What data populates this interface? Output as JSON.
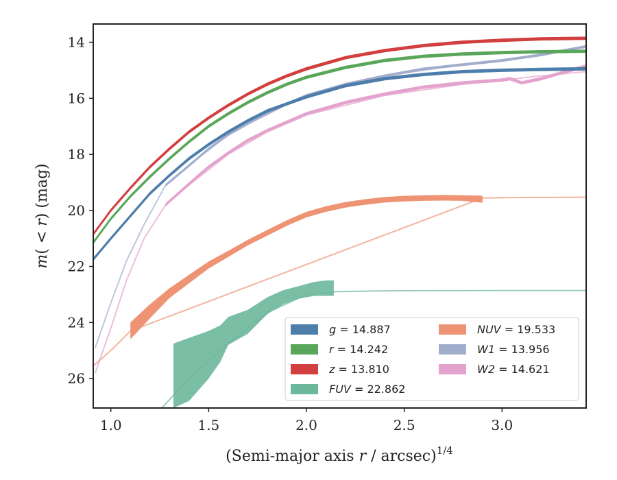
{
  "chart_data": {
    "type": "line",
    "title": "",
    "xlabel": "(Semi-major axis r / arcsec)^1/4",
    "ylabel": "m(< r) (mag)",
    "xlim": [
      0.91,
      3.43
    ],
    "ylim": [
      27.05,
      13.35
    ],
    "y_inverted": true,
    "x_ticks": [
      1.0,
      1.5,
      2.0,
      2.5,
      3.0
    ],
    "x_tick_labels": [
      "1.0",
      "1.5",
      "2.0",
      "2.5",
      "3.0"
    ],
    "y_ticks": [
      14,
      16,
      18,
      20,
      22,
      24,
      26
    ],
    "y_tick_labels": [
      "14",
      "16",
      "18",
      "20",
      "22",
      "24",
      "26"
    ],
    "grid": false,
    "legend_position": "lower-right",
    "series": [
      {
        "name": "g = 14.887",
        "color": "#4c7dab",
        "band_width": 0.12,
        "x": [
          0.91,
          1.0,
          1.1,
          1.2,
          1.3,
          1.4,
          1.5,
          1.6,
          1.7,
          1.8,
          1.9,
          2.0,
          2.2,
          2.4,
          2.6,
          2.8,
          3.0,
          3.2,
          3.43
        ],
        "y": [
          21.75,
          21.0,
          20.2,
          19.4,
          18.75,
          18.15,
          17.65,
          17.2,
          16.8,
          16.45,
          16.2,
          15.95,
          15.55,
          15.3,
          15.15,
          15.05,
          15.0,
          14.97,
          14.95
        ]
      },
      {
        "name": "r = 14.242",
        "color": "#5aa65a",
        "band_width": 0.12,
        "x": [
          0.91,
          1.0,
          1.1,
          1.2,
          1.3,
          1.4,
          1.5,
          1.6,
          1.7,
          1.8,
          1.9,
          2.0,
          2.2,
          2.4,
          2.6,
          2.8,
          3.0,
          3.2,
          3.43
        ],
        "y": [
          21.15,
          20.3,
          19.5,
          18.8,
          18.15,
          17.55,
          17.0,
          16.55,
          16.15,
          15.8,
          15.5,
          15.25,
          14.9,
          14.65,
          14.5,
          14.42,
          14.37,
          14.34,
          14.32
        ]
      },
      {
        "name": "z = 13.810",
        "color": "#d23f3f",
        "band_width": 0.12,
        "x": [
          0.91,
          1.0,
          1.1,
          1.2,
          1.3,
          1.4,
          1.5,
          1.6,
          1.7,
          1.8,
          1.9,
          2.0,
          2.2,
          2.4,
          2.6,
          2.8,
          3.0,
          3.2,
          3.43
        ],
        "y": [
          20.85,
          20.0,
          19.2,
          18.45,
          17.8,
          17.2,
          16.7,
          16.25,
          15.85,
          15.5,
          15.2,
          14.95,
          14.55,
          14.3,
          14.12,
          14.0,
          13.93,
          13.88,
          13.86
        ]
      },
      {
        "name": "FUV = 22.862",
        "color": "#6db79c",
        "band_x": [
          1.32,
          1.4,
          1.5,
          1.56,
          1.6,
          1.7,
          1.8,
          1.88,
          1.96,
          2.04,
          2.1,
          2.14
        ],
        "band_y_upper": [
          24.75,
          24.55,
          24.3,
          24.1,
          23.8,
          23.55,
          23.1,
          22.85,
          22.7,
          22.55,
          22.5,
          22.5
        ],
        "band_y_lower": [
          27.05,
          26.8,
          26.0,
          25.4,
          24.8,
          24.4,
          23.7,
          23.35,
          23.15,
          23.05,
          23.05,
          23.05
        ],
        "line_x": [
          1.26,
          1.4,
          1.6,
          1.8,
          2.0,
          2.14,
          2.4,
          3.0,
          3.43
        ],
        "line_y": [
          27.05,
          26.0,
          24.75,
          23.65,
          23.0,
          22.9,
          22.87,
          22.86,
          22.86
        ]
      },
      {
        "name": "NUV = 19.533",
        "color": "#ee9474",
        "band_x": [
          1.1,
          1.2,
          1.3,
          1.4,
          1.5,
          1.6,
          1.7,
          1.8,
          1.9,
          2.0,
          2.1,
          2.2,
          2.3,
          2.4,
          2.5,
          2.6,
          2.7,
          2.8,
          2.9
        ],
        "band_y": [
          24.3,
          23.6,
          22.95,
          22.45,
          21.95,
          21.55,
          21.15,
          20.8,
          20.45,
          20.15,
          19.95,
          19.8,
          19.7,
          19.62,
          19.58,
          19.56,
          19.55,
          19.56,
          19.6
        ],
        "band_width": [
          0.6,
          0.5,
          0.35,
          0.3,
          0.25,
          0.22,
          0.2,
          0.2,
          0.2,
          0.2,
          0.2,
          0.2,
          0.2,
          0.2,
          0.2,
          0.2,
          0.2,
          0.2,
          0.25
        ],
        "line_x": [
          0.91,
          1.0,
          1.1,
          2.9,
          3.1,
          3.43
        ],
        "line_y": [
          25.55,
          25.0,
          24.3,
          19.56,
          19.54,
          19.53
        ]
      },
      {
        "name": "W1 = 13.956",
        "color": "#a2adcc",
        "band_width": 0.1,
        "x": [
          1.28,
          1.4,
          1.5,
          1.6,
          1.7,
          1.8,
          1.9,
          2.0,
          2.2,
          2.4,
          2.6,
          2.8,
          3.0,
          3.2,
          3.43
        ],
        "y": [
          19.1,
          18.4,
          17.8,
          17.3,
          16.9,
          16.55,
          16.2,
          15.9,
          15.5,
          15.2,
          14.95,
          14.8,
          14.65,
          14.45,
          14.15
        ],
        "line_x": [
          0.92,
          1.0,
          1.08,
          1.17,
          1.28,
          1.4,
          1.6,
          1.8,
          2.0,
          2.4,
          2.8,
          3.2,
          3.43
        ],
        "line_y": [
          24.9,
          23.3,
          21.8,
          20.5,
          19.1,
          18.4,
          17.3,
          16.5,
          15.9,
          15.2,
          14.8,
          14.45,
          14.15
        ]
      },
      {
        "name": "W2 = 14.621",
        "color": "#e4a3cd",
        "band_width": 0.12,
        "x": [
          1.28,
          1.4,
          1.5,
          1.6,
          1.7,
          1.8,
          1.9,
          2.0,
          2.2,
          2.4,
          2.6,
          2.8,
          3.0,
          3.04,
          3.1,
          3.2,
          3.3,
          3.43
        ],
        "y": [
          19.8,
          19.05,
          18.45,
          17.95,
          17.5,
          17.15,
          16.85,
          16.55,
          16.15,
          15.85,
          15.6,
          15.45,
          15.35,
          15.3,
          15.45,
          15.3,
          15.1,
          14.85
        ],
        "line_x": [
          0.92,
          1.0,
          1.08,
          1.17,
          1.28,
          1.4,
          1.6,
          1.8,
          2.0,
          2.4,
          2.8,
          3.2,
          3.43
        ],
        "line_y": [
          25.8,
          24.2,
          22.5,
          21.0,
          19.8,
          19.1,
          18.0,
          17.2,
          16.6,
          15.9,
          15.5,
          15.2,
          15.05
        ]
      }
    ],
    "legend": [
      {
        "label": "g = 14.887",
        "color": "#4c7dab"
      },
      {
        "label": "r = 14.242",
        "color": "#5aa65a"
      },
      {
        "label": "z = 13.810",
        "color": "#d23f3f"
      },
      {
        "label": "FUV = 22.862",
        "color": "#6db79c"
      },
      {
        "label": "NUV = 19.533",
        "color": "#ee9474"
      },
      {
        "label": "W1 = 13.956",
        "color": "#a2adcc"
      },
      {
        "label": "W2 = 14.621",
        "color": "#e4a3cd"
      }
    ]
  }
}
